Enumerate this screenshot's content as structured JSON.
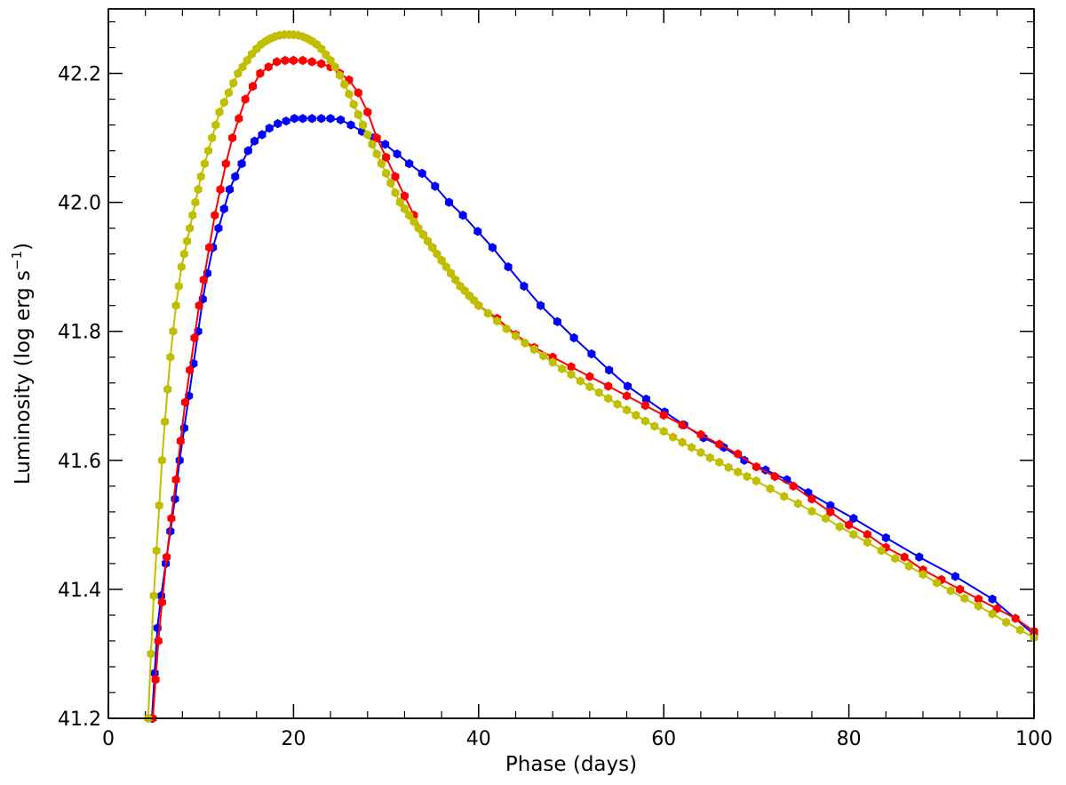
{
  "chart_data": {
    "type": "line",
    "title": "",
    "xlabel": "Phase (days)",
    "ylabel_text": "Luminosity (log erg s",
    "ylabel_sup": "−1",
    "ylabel_close": ")",
    "xlim": [
      0,
      100
    ],
    "ylim": [
      41.2,
      42.3
    ],
    "x_ticks": [
      0,
      20,
      40,
      60,
      80,
      100
    ],
    "x_tick_labels": [
      "0",
      "20",
      "40",
      "60",
      "80",
      "100"
    ],
    "y_ticks": [
      41.2,
      41.4,
      41.6,
      41.8,
      42.0,
      42.2
    ],
    "y_tick_labels": [
      "41.2",
      "41.4",
      "41.6",
      "41.8",
      "42.0",
      "42.2"
    ],
    "grid": false,
    "legend": "none",
    "series": [
      {
        "color": "#0000ff",
        "x": [
          4.7,
          5.0,
          5.3,
          5.7,
          6.2,
          6.7,
          7.2,
          7.7,
          8.2,
          8.7,
          9.2,
          9.7,
          10.2,
          10.7,
          11.3,
          11.9,
          12.5,
          13.1,
          13.7,
          14.4,
          15.1,
          15.8,
          16.6,
          17.4,
          18.3,
          19.2,
          20.1,
          21.0,
          22.0,
          23.0,
          24.0,
          25.1,
          26.2,
          27.4,
          28.6,
          29.9,
          31.2,
          32.5,
          33.9,
          35.3,
          36.8,
          38.3,
          39.9,
          41.5,
          43.2,
          44.9,
          46.7,
          48.5,
          50.3,
          52.2,
          54.1,
          56.1,
          58.1,
          60.1,
          62.2,
          64.3,
          66.5,
          68.7,
          71.0,
          73.3,
          75.6,
          78.0,
          80.5,
          84.0,
          87.6,
          91.5,
          95.5,
          100.0
        ],
        "y": [
          41.2,
          41.27,
          41.34,
          41.39,
          41.44,
          41.49,
          41.54,
          41.6,
          41.65,
          41.7,
          41.75,
          41.8,
          41.85,
          41.89,
          41.93,
          41.96,
          41.99,
          42.02,
          42.04,
          42.06,
          42.08,
          42.095,
          42.105,
          42.115,
          42.122,
          42.126,
          42.13,
          42.13,
          42.13,
          42.13,
          42.13,
          42.128,
          42.12,
          42.11,
          42.1,
          42.09,
          42.075,
          42.06,
          42.045,
          42.025,
          42.0,
          41.98,
          41.955,
          41.93,
          41.9,
          41.87,
          41.84,
          41.815,
          41.79,
          41.765,
          41.74,
          41.715,
          41.695,
          41.675,
          41.655,
          41.635,
          41.62,
          41.6,
          41.585,
          41.57,
          41.55,
          41.53,
          41.51,
          41.48,
          41.45,
          41.42,
          41.385,
          41.33
        ]
      },
      {
        "color": "#ff0000",
        "x": [
          4.8,
          5.1,
          5.4,
          5.8,
          6.3,
          6.8,
          7.3,
          7.8,
          8.3,
          8.8,
          9.3,
          9.8,
          10.3,
          10.9,
          11.5,
          12.1,
          12.7,
          13.4,
          14.1,
          14.8,
          15.6,
          16.4,
          17.3,
          18.2,
          19.1,
          20.0,
          21.0,
          22.0,
          23.0,
          24.0,
          25.0,
          26.0,
          27.0,
          28.0,
          29.0,
          30.0,
          31.0,
          32.0,
          33.0,
          34.0,
          35.0,
          36.0,
          37.0,
          38.0,
          39.0,
          40.0,
          42.0,
          44.0,
          46.0,
          48.0,
          50.0,
          52.0,
          54.0,
          56.0,
          58.0,
          60.0,
          62.0,
          64.0,
          66.0,
          68.0,
          70.0,
          72.0,
          74.0,
          76.0,
          78.0,
          80.0,
          82.0,
          84.0,
          86.0,
          88.0,
          90.0,
          92.0,
          94.0,
          96.0,
          98.0,
          100.0
        ],
        "y": [
          41.2,
          41.26,
          41.32,
          41.38,
          41.45,
          41.51,
          41.57,
          41.63,
          41.69,
          41.74,
          41.79,
          41.84,
          41.88,
          41.93,
          41.98,
          42.02,
          42.06,
          42.1,
          42.13,
          42.16,
          42.18,
          42.2,
          42.21,
          42.218,
          42.22,
          42.22,
          42.22,
          42.218,
          42.215,
          42.21,
          42.2,
          42.19,
          42.17,
          42.14,
          42.1,
          42.07,
          42.04,
          42.01,
          41.98,
          41.95,
          41.93,
          41.91,
          41.89,
          41.87,
          41.855,
          41.84,
          41.82,
          41.795,
          41.775,
          41.76,
          41.745,
          41.73,
          41.715,
          41.7,
          41.685,
          41.67,
          41.655,
          41.64,
          41.625,
          41.61,
          41.59,
          41.575,
          41.56,
          41.54,
          41.52,
          41.5,
          41.485,
          41.465,
          41.45,
          41.43,
          41.415,
          41.4,
          41.385,
          41.37,
          41.355,
          41.335
        ]
      },
      {
        "color": "#bfbf00",
        "x": [
          4.3,
          4.6,
          4.9,
          5.2,
          5.5,
          5.8,
          6.1,
          6.4,
          6.7,
          7.0,
          7.3,
          7.6,
          7.9,
          8.2,
          8.5,
          8.8,
          9.1,
          9.4,
          9.7,
          10.0,
          10.4,
          10.8,
          11.2,
          11.6,
          12.0,
          12.5,
          13.0,
          13.5,
          14.0,
          14.5,
          15.0,
          15.5,
          16.0,
          16.5,
          17.0,
          17.5,
          18.0,
          18.5,
          19.0,
          19.5,
          20.0,
          20.5,
          21.0,
          21.5,
          22.0,
          22.5,
          23.0,
          23.5,
          24.0,
          24.5,
          25.0,
          25.5,
          26.0,
          26.5,
          27.0,
          27.5,
          28.0,
          28.5,
          29.0,
          29.5,
          30.0,
          30.5,
          31.0,
          31.5,
          32.0,
          32.5,
          33.0,
          33.5,
          34.0,
          34.5,
          35.0,
          35.5,
          36.0,
          36.5,
          37.0,
          37.5,
          38.0,
          38.5,
          39.0,
          39.5,
          40.0,
          41.0,
          42.0,
          43.0,
          44.0,
          45.0,
          46.0,
          47.0,
          48.0,
          49.0,
          50.0,
          51.0,
          52.0,
          53.0,
          54.0,
          55.0,
          56.0,
          57.0,
          58.0,
          59.0,
          60.0,
          61.0,
          62.0,
          63.0,
          64.0,
          65.0,
          66.0,
          67.0,
          68.0,
          69.0,
          70.0,
          71.5,
          73.0,
          74.5,
          76.0,
          77.5,
          79.0,
          80.5,
          82.0,
          83.5,
          85.0,
          86.5,
          88.0,
          89.5,
          91.0,
          92.5,
          94.0,
          95.5,
          97.0,
          98.5,
          100.0
        ],
        "y": [
          41.2,
          41.3,
          41.39,
          41.46,
          41.53,
          41.6,
          41.66,
          41.71,
          41.76,
          41.8,
          41.84,
          41.87,
          41.9,
          41.92,
          41.94,
          41.96,
          41.98,
          42.0,
          42.02,
          42.04,
          42.06,
          42.08,
          42.1,
          42.12,
          42.14,
          42.155,
          42.17,
          42.185,
          42.2,
          42.21,
          42.22,
          42.23,
          42.238,
          42.245,
          42.25,
          42.254,
          42.257,
          42.259,
          42.26,
          42.26,
          42.26,
          42.259,
          42.257,
          42.254,
          42.25,
          42.245,
          42.238,
          42.229,
          42.22,
          42.21,
          42.197,
          42.183,
          42.168,
          42.152,
          42.136,
          42.12,
          42.105,
          42.09,
          42.075,
          42.06,
          42.045,
          42.03,
          42.015,
          42.0,
          41.99,
          41.98,
          41.97,
          41.96,
          41.95,
          41.94,
          41.93,
          41.92,
          41.91,
          41.9,
          41.89,
          41.88,
          41.87,
          41.863,
          41.855,
          41.848,
          41.84,
          41.828,
          41.816,
          41.804,
          41.793,
          41.782,
          41.772,
          41.762,
          41.752,
          41.742,
          41.733,
          41.723,
          41.714,
          41.705,
          41.696,
          41.687,
          41.678,
          41.67,
          41.661,
          41.653,
          41.645,
          41.636,
          41.628,
          41.62,
          41.612,
          41.604,
          41.597,
          41.589,
          41.582,
          41.575,
          41.568,
          41.556,
          41.544,
          41.533,
          41.521,
          41.51,
          41.497,
          41.485,
          41.473,
          41.46,
          41.448,
          41.436,
          41.423,
          41.41,
          41.398,
          41.386,
          41.374,
          41.362,
          41.349,
          41.337,
          41.325
        ]
      }
    ]
  }
}
